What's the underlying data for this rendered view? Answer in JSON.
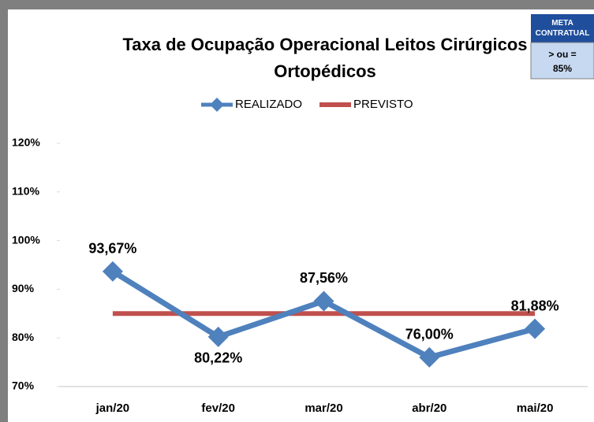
{
  "chart_data": {
    "type": "line",
    "title": [
      "Taxa de Ocupação Operacional Leitos Cirúrgicos",
      "Ortopédicos"
    ],
    "categories": [
      "jan/20",
      "fev/20",
      "mar/20",
      "abr/20",
      "mai/20"
    ],
    "series": [
      {
        "name": "REALIZADO",
        "color": "#4f81bd",
        "values": [
          93.67,
          80.22,
          87.56,
          76.0,
          81.88
        ],
        "value_labels": [
          "93,67%",
          "80,22%",
          "87,56%",
          "76,00%",
          "81,88%"
        ]
      },
      {
        "name": "PREVISTO",
        "color": "#c0504d",
        "values": [
          85,
          85,
          85,
          85,
          85
        ]
      }
    ],
    "ylim": [
      70,
      120
    ],
    "yticks": [
      {
        "value": 70,
        "label": "70%"
      },
      {
        "value": 80,
        "label": "80%"
      },
      {
        "value": 90,
        "label": "90%"
      },
      {
        "value": 100,
        "label": "100%"
      },
      {
        "value": 110,
        "label": "110%"
      },
      {
        "value": 120,
        "label": "120%"
      }
    ],
    "grid": false,
    "legend": "top",
    "annotation": {
      "header": "META CONTRATUAL",
      "body": [
        "> ou =",
        "85%"
      ]
    }
  }
}
